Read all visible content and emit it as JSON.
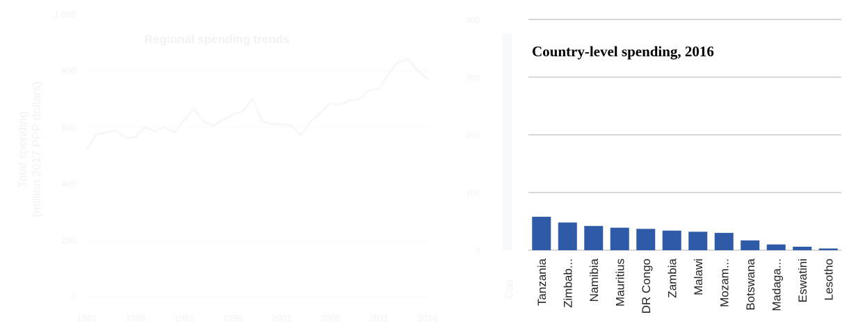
{
  "chart_data": [
    {
      "type": "line",
      "title": "Regional spending trends",
      "xlabel": "",
      "ylabel": "Total spending\n(million 2017 PPP dollars)",
      "ylim": [
        0,
        1000
      ],
      "y_ticks": [
        "0",
        "200",
        "400",
        "600",
        "800",
        "1,000"
      ],
      "x_ticks": [
        "1981",
        "1986",
        "1991",
        "1996",
        "2001",
        "2006",
        "2011",
        "2016"
      ],
      "x_tick_values": [
        1981,
        1986,
        1991,
        1996,
        2001,
        2006,
        2011,
        2016
      ],
      "grid": true,
      "colors": {
        "line": "#f7f7f7",
        "text": "#f2f2f2",
        "grid": "#fafafa"
      },
      "series": [
        {
          "x": [
            1981,
            1982,
            1983,
            1984,
            1985,
            1986,
            1987,
            1988,
            1989,
            1990,
            1991,
            1992,
            1993,
            1994,
            1995,
            1996,
            1997,
            1998,
            1999,
            2000,
            2001,
            2002,
            2003,
            2004,
            2005,
            2006,
            2007,
            2008,
            2009,
            2010,
            2011,
            2012,
            2013,
            2014,
            2015,
            2016
          ],
          "values": [
            520,
            575,
            580,
            590,
            560,
            565,
            600,
            585,
            600,
            580,
            625,
            665,
            620,
            605,
            625,
            645,
            655,
            700,
            620,
            610,
            610,
            605,
            570,
            620,
            650,
            685,
            680,
            695,
            700,
            730,
            735,
            790,
            830,
            840,
            800,
            770
          ]
        }
      ]
    },
    {
      "type": "bar",
      "title": "Country-level spending, 2016",
      "xlabel": "",
      "ylabel": "",
      "ylim": [
        0,
        400
      ],
      "y_ticks": [
        "0",
        "100",
        "200",
        "300",
        "400"
      ],
      "grid": true,
      "colors": {
        "bar": "#2e5aa8",
        "grid": "#b0b0b0",
        "axis_text": "#f2f2f2"
      },
      "categories": [
        "Tanzania",
        "Zimbab...",
        "Namibia",
        "Mauritius",
        "DR Congo",
        "Zambia",
        "Malawi",
        "Mozam...",
        "Botswana",
        "Madaga...",
        "Eswatini",
        "Lesotho"
      ],
      "values": [
        58,
        48,
        42,
        39,
        37,
        34,
        32,
        30,
        17,
        10,
        6,
        3
      ],
      "axis_label_fragment": "Cou"
    }
  ]
}
